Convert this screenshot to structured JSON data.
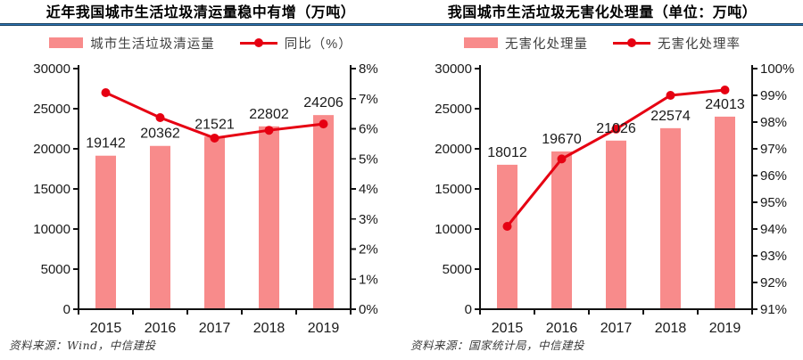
{
  "page": {
    "background": "#ffffff",
    "divider_color": "#2e75b6",
    "divider_edge_color": "#17405f"
  },
  "chart_data": [
    {
      "type": "bar+line",
      "title": "近年我国城市生活垃圾清运量稳中有增（万吨）",
      "categories": [
        "2015",
        "2016",
        "2017",
        "2018",
        "2019"
      ],
      "series": [
        {
          "name": "城市生活垃圾清运量",
          "type": "bar",
          "axis": "left",
          "values": [
            19142,
            20362,
            21521,
            22802,
            24206
          ],
          "color": "#F88B8B"
        },
        {
          "name": "同比（%）",
          "type": "line",
          "axis": "right",
          "values": [
            7.2,
            6.37,
            5.69,
            5.95,
            6.16
          ],
          "color": "#E60012"
        }
      ],
      "left_axis": {
        "min": 0,
        "max": 30000,
        "step": 5000,
        "suffix": ""
      },
      "right_axis": {
        "min": 0,
        "max": 8,
        "step": 1,
        "suffix": "%"
      },
      "grid": false,
      "legend_position": "top",
      "text_color": "#1a1a1a",
      "axis_color": "#111111",
      "source": "资料来源：Wind，中信建投"
    },
    {
      "type": "bar+line",
      "title": "我国城市生活垃圾无害化处理量（单位：万吨）",
      "categories": [
        "2015",
        "2016",
        "2017",
        "2018",
        "2019"
      ],
      "series": [
        {
          "name": "无害化处理量",
          "type": "bar",
          "axis": "left",
          "values": [
            18012,
            19670,
            21026,
            22574,
            24013
          ],
          "color": "#F88B8B"
        },
        {
          "name": "无害化处理率",
          "type": "line",
          "axis": "right",
          "values": [
            94.1,
            96.62,
            97.74,
            99.0,
            99.2
          ],
          "color": "#E60012"
        }
      ],
      "left_axis": {
        "min": 0,
        "max": 30000,
        "step": 5000,
        "suffix": ""
      },
      "right_axis": {
        "min": 91,
        "max": 100,
        "step": 1,
        "suffix": "%"
      },
      "grid": false,
      "legend_position": "top",
      "text_color": "#1a1a1a",
      "axis_color": "#111111",
      "source": "资料来源：国家统计局，中信建投"
    }
  ]
}
